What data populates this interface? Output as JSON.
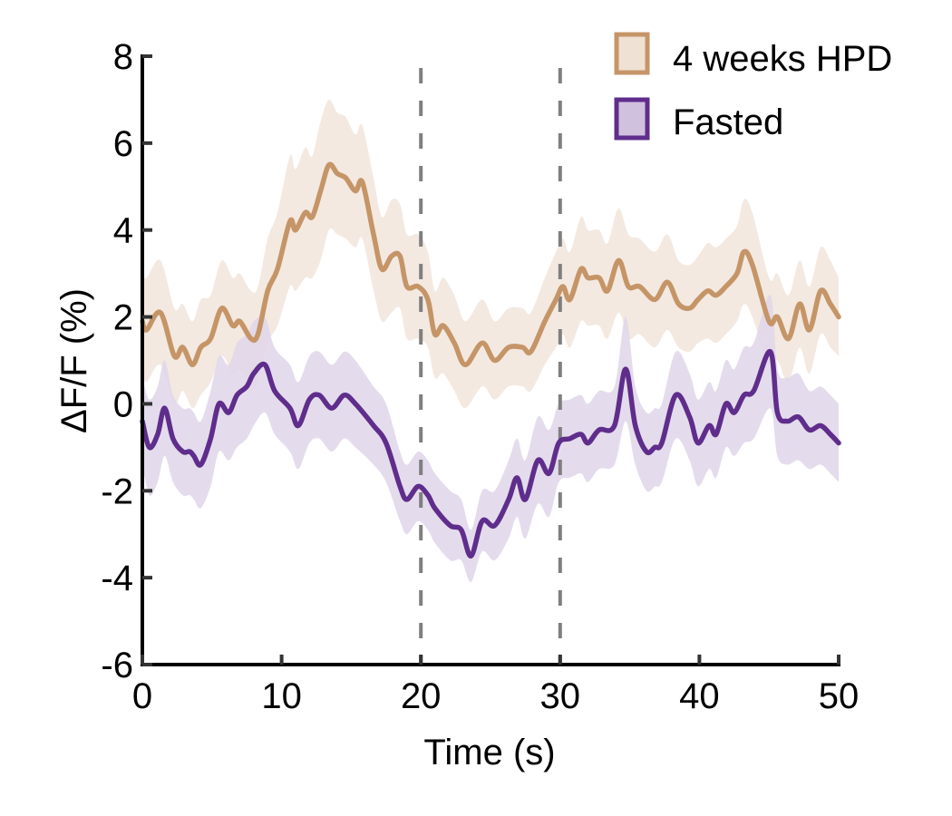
{
  "chart_data": {
    "type": "line",
    "title": "",
    "xlabel": "Time (s)",
    "ylabel": "ΔF/F (%)",
    "xlim": [
      0,
      50
    ],
    "ylim": [
      -6,
      8
    ],
    "xticks": [
      0,
      10,
      20,
      30,
      40,
      50
    ],
    "xtick_labels": [
      "0",
      "10",
      "20",
      "30",
      "40",
      "50"
    ],
    "yticks": [
      8,
      6,
      4,
      2,
      0,
      -2,
      -4,
      -6
    ],
    "ytick_labels": [
      "8",
      "6",
      "4",
      "2",
      "0",
      "-2",
      "-4",
      "-6"
    ],
    "grid": false,
    "legend_position": "top-right",
    "vlines": [
      {
        "x": 20,
        "style": "dashed",
        "color": "#7f7f7f"
      },
      {
        "x": 30,
        "style": "dashed",
        "color": "#7f7f7f"
      }
    ],
    "series": [
      {
        "name": "4 weeks HPD",
        "line_color": "#c59567",
        "band_color": "#f2e8df",
        "x": [
          0,
          0.3,
          1.3,
          2.3,
          2.9,
          3.6,
          4.2,
          4.9,
          5.7,
          6.5,
          7.0,
          7.8,
          8.3,
          9.0,
          9.7,
          10.6,
          11.0,
          11.7,
          12.2,
          12.8,
          13.4,
          14.0,
          14.6,
          15.3,
          15.8,
          16.6,
          17.2,
          17.9,
          18.5,
          19.0,
          19.8,
          20.5,
          21.0,
          21.6,
          22.4,
          23.2,
          24.4,
          25.3,
          26.3,
          27.3,
          27.9,
          28.9,
          29.7,
          30.2,
          30.7,
          31.5,
          32.0,
          32.8,
          33.4,
          34.2,
          34.9,
          35.7,
          36.8,
          37.7,
          38.5,
          39.3,
          39.9,
          40.6,
          41.2,
          41.9,
          42.7,
          43.2,
          43.8,
          45.0,
          45.6,
          46.4,
          47.2,
          47.9,
          48.7,
          49.4,
          50.0
        ],
        "mean": [
          1.9,
          1.7,
          2.1,
          1.1,
          1.3,
          0.9,
          1.3,
          1.5,
          2.2,
          1.8,
          1.9,
          1.5,
          1.6,
          2.6,
          3.1,
          4.2,
          4.0,
          4.4,
          4.3,
          4.9,
          5.5,
          5.3,
          5.2,
          4.9,
          5.1,
          3.9,
          3.1,
          3.4,
          3.4,
          2.7,
          2.7,
          2.4,
          1.6,
          1.8,
          1.4,
          0.9,
          1.4,
          1.0,
          1.3,
          1.3,
          1.2,
          1.9,
          2.4,
          2.7,
          2.4,
          3.1,
          2.9,
          2.9,
          2.6,
          3.3,
          2.7,
          2.7,
          2.4,
          2.8,
          2.3,
          2.2,
          2.4,
          2.6,
          2.5,
          2.7,
          3.0,
          3.5,
          3.2,
          1.9,
          2.0,
          1.5,
          2.3,
          1.7,
          2.6,
          2.3,
          2.0
        ],
        "sem": [
          1.1,
          1.2,
          1.2,
          1.1,
          1.0,
          1.0,
          1.1,
          1.0,
          1.1,
          1.1,
          1.1,
          1.1,
          1.1,
          1.2,
          1.3,
          1.5,
          1.4,
          1.5,
          1.4,
          1.6,
          1.5,
          1.4,
          1.4,
          1.3,
          1.3,
          1.3,
          1.2,
          1.3,
          1.2,
          1.2,
          1.2,
          1.1,
          1.0,
          1.1,
          1.1,
          1.0,
          1.0,
          0.9,
          0.9,
          0.9,
          0.9,
          1.0,
          1.1,
          1.1,
          1.1,
          1.2,
          1.1,
          1.1,
          1.1,
          1.2,
          1.2,
          1.1,
          1.1,
          1.1,
          1.0,
          1.0,
          1.0,
          1.1,
          1.1,
          1.1,
          1.1,
          1.2,
          1.2,
          1.0,
          1.0,
          1.0,
          1.0,
          1.0,
          1.0,
          1.0,
          0.9
        ]
      },
      {
        "name": "Fasted",
        "line_color": "#5f2d8c",
        "band_color": "#dfd6e9",
        "x": [
          0,
          0.5,
          1.1,
          1.6,
          2.2,
          2.9,
          3.4,
          3.7,
          4.2,
          4.9,
          5.5,
          6.2,
          6.8,
          7.5,
          8.0,
          8.8,
          9.5,
          10.6,
          11.2,
          12.0,
          12.7,
          13.6,
          14.5,
          15.3,
          16.6,
          17.5,
          18.5,
          19.0,
          19.8,
          20.5,
          21.0,
          22.1,
          22.9,
          23.6,
          24.4,
          25.3,
          26.3,
          26.9,
          27.5,
          28.4,
          29.2,
          29.9,
          30.7,
          31.5,
          32.0,
          32.8,
          33.9,
          34.7,
          35.4,
          36.2,
          36.8,
          37.3,
          38.3,
          39.3,
          39.9,
          40.7,
          41.2,
          41.9,
          42.5,
          43.2,
          43.9,
          45.1,
          45.6,
          46.3,
          47.1,
          47.9,
          48.7,
          49.4,
          50.0
        ],
        "mean": [
          -0.4,
          -1.0,
          -0.7,
          -0.1,
          -0.8,
          -1.1,
          -1.1,
          -1.2,
          -1.4,
          -0.8,
          0.0,
          -0.2,
          0.2,
          0.4,
          0.7,
          0.9,
          0.3,
          -0.1,
          -0.5,
          0.1,
          0.2,
          -0.1,
          0.2,
          0.0,
          -0.5,
          -0.9,
          -1.9,
          -2.2,
          -1.9,
          -2.1,
          -2.4,
          -2.8,
          -2.9,
          -3.5,
          -2.7,
          -2.8,
          -2.2,
          -1.7,
          -2.2,
          -1.3,
          -1.6,
          -0.9,
          -0.8,
          -0.7,
          -0.9,
          -0.6,
          -0.5,
          0.8,
          -0.5,
          -1.1,
          -1.0,
          -0.9,
          0.2,
          -0.3,
          -0.9,
          -0.5,
          -0.7,
          0.0,
          -0.2,
          0.2,
          0.3,
          1.2,
          -0.2,
          -0.4,
          -0.3,
          -0.6,
          -0.5,
          -0.7,
          -0.9
        ],
        "sem": [
          1.0,
          1.1,
          1.1,
          1.1,
          1.0,
          1.0,
          1.0,
          1.0,
          1.0,
          1.1,
          1.1,
          1.1,
          1.2,
          1.2,
          1.2,
          1.1,
          1.0,
          1.0,
          1.0,
          1.0,
          1.0,
          1.0,
          1.0,
          1.0,
          0.9,
          0.9,
          0.8,
          0.8,
          0.8,
          0.8,
          0.8,
          0.8,
          0.7,
          0.6,
          0.7,
          0.8,
          0.9,
          0.9,
          0.9,
          1.0,
          1.0,
          0.9,
          0.9,
          0.9,
          0.9,
          0.9,
          0.9,
          1.2,
          0.9,
          0.9,
          0.9,
          0.9,
          1.0,
          1.0,
          1.0,
          1.0,
          1.0,
          1.0,
          1.0,
          1.1,
          1.1,
          1.3,
          1.0,
          1.0,
          1.0,
          0.9,
          0.9,
          0.9,
          0.9
        ]
      }
    ]
  }
}
